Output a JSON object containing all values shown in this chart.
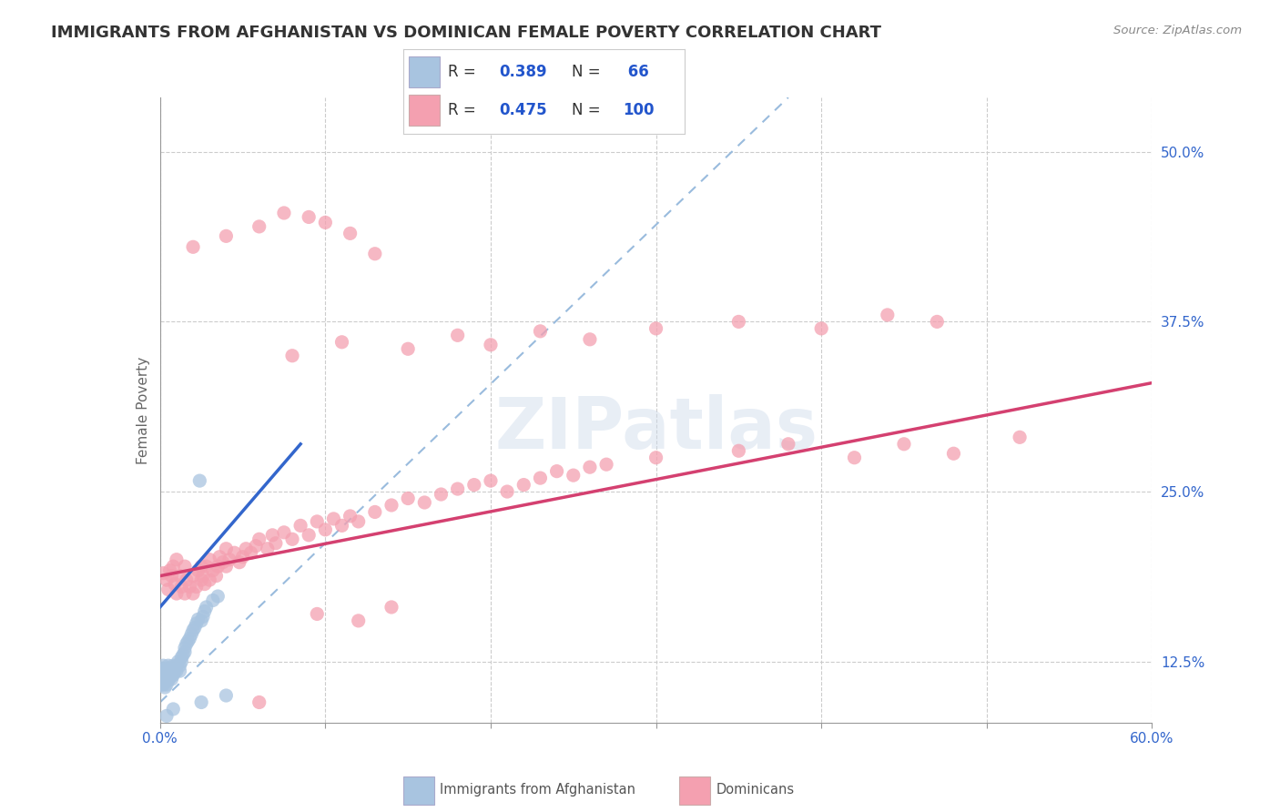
{
  "title": "IMMIGRANTS FROM AFGHANISTAN VS DOMINICAN FEMALE POVERTY CORRELATION CHART",
  "source": "Source: ZipAtlas.com",
  "ylabel": "Female Poverty",
  "xlim": [
    0.0,
    0.6
  ],
  "ylim": [
    0.08,
    0.54
  ],
  "x_tick_positions": [
    0.0,
    0.1,
    0.2,
    0.3,
    0.4,
    0.5,
    0.6
  ],
  "ylabel_ticks": [
    0.125,
    0.25,
    0.375,
    0.5
  ],
  "ylabel_tick_labels": [
    "12.5%",
    "25.0%",
    "37.5%",
    "50.0%"
  ],
  "afghanistan_color": "#a8c4e0",
  "dominican_color": "#f4a0b0",
  "legend_R_color": "#2255cc",
  "afghanistan_R": "0.389",
  "afghanistan_N": "66",
  "dominican_R": "0.475",
  "dominican_N": "100",
  "watermark": "ZIPatlas",
  "afghanistan_scatter": [
    [
      0.001,
      0.115
    ],
    [
      0.001,
      0.112
    ],
    [
      0.001,
      0.108
    ],
    [
      0.001,
      0.12
    ],
    [
      0.001,
      0.118
    ],
    [
      0.001,
      0.113
    ],
    [
      0.002,
      0.116
    ],
    [
      0.002,
      0.11
    ],
    [
      0.002,
      0.119
    ],
    [
      0.002,
      0.114
    ],
    [
      0.002,
      0.108
    ],
    [
      0.002,
      0.122
    ],
    [
      0.003,
      0.115
    ],
    [
      0.003,
      0.112
    ],
    [
      0.003,
      0.118
    ],
    [
      0.003,
      0.11
    ],
    [
      0.003,
      0.106
    ],
    [
      0.004,
      0.116
    ],
    [
      0.004,
      0.113
    ],
    [
      0.004,
      0.12
    ],
    [
      0.004,
      0.108
    ],
    [
      0.005,
      0.118
    ],
    [
      0.005,
      0.114
    ],
    [
      0.005,
      0.111
    ],
    [
      0.005,
      0.122
    ],
    [
      0.006,
      0.116
    ],
    [
      0.006,
      0.12
    ],
    [
      0.006,
      0.113
    ],
    [
      0.007,
      0.118
    ],
    [
      0.007,
      0.115
    ],
    [
      0.007,
      0.112
    ],
    [
      0.007,
      0.12
    ],
    [
      0.008,
      0.118
    ],
    [
      0.008,
      0.122
    ],
    [
      0.008,
      0.115
    ],
    [
      0.009,
      0.118
    ],
    [
      0.009,
      0.12
    ],
    [
      0.01,
      0.122
    ],
    [
      0.01,
      0.118
    ],
    [
      0.011,
      0.125
    ],
    [
      0.012,
      0.118
    ],
    [
      0.012,
      0.122
    ],
    [
      0.013,
      0.125
    ],
    [
      0.013,
      0.128
    ],
    [
      0.014,
      0.13
    ],
    [
      0.015,
      0.132
    ],
    [
      0.015,
      0.135
    ],
    [
      0.016,
      0.138
    ],
    [
      0.017,
      0.14
    ],
    [
      0.018,
      0.142
    ],
    [
      0.019,
      0.145
    ],
    [
      0.02,
      0.148
    ],
    [
      0.021,
      0.15
    ],
    [
      0.022,
      0.153
    ],
    [
      0.023,
      0.156
    ],
    [
      0.024,
      0.258
    ],
    [
      0.025,
      0.155
    ],
    [
      0.026,
      0.158
    ],
    [
      0.027,
      0.162
    ],
    [
      0.028,
      0.165
    ],
    [
      0.032,
      0.17
    ],
    [
      0.035,
      0.173
    ],
    [
      0.004,
      0.085
    ],
    [
      0.008,
      0.09
    ],
    [
      0.025,
      0.095
    ],
    [
      0.04,
      0.1
    ]
  ],
  "dominican_scatter": [
    [
      0.002,
      0.19
    ],
    [
      0.004,
      0.185
    ],
    [
      0.005,
      0.178
    ],
    [
      0.006,
      0.192
    ],
    [
      0.007,
      0.188
    ],
    [
      0.008,
      0.195
    ],
    [
      0.009,
      0.182
    ],
    [
      0.01,
      0.175
    ],
    [
      0.01,
      0.2
    ],
    [
      0.012,
      0.188
    ],
    [
      0.013,
      0.18
    ],
    [
      0.015,
      0.175
    ],
    [
      0.015,
      0.195
    ],
    [
      0.016,
      0.185
    ],
    [
      0.018,
      0.18
    ],
    [
      0.02,
      0.175
    ],
    [
      0.02,
      0.188
    ],
    [
      0.022,
      0.18
    ],
    [
      0.023,
      0.192
    ],
    [
      0.025,
      0.185
    ],
    [
      0.025,
      0.195
    ],
    [
      0.026,
      0.188
    ],
    [
      0.027,
      0.182
    ],
    [
      0.028,
      0.195
    ],
    [
      0.03,
      0.185
    ],
    [
      0.03,
      0.2
    ],
    [
      0.032,
      0.192
    ],
    [
      0.034,
      0.188
    ],
    [
      0.035,
      0.195
    ],
    [
      0.036,
      0.202
    ],
    [
      0.038,
      0.198
    ],
    [
      0.04,
      0.195
    ],
    [
      0.04,
      0.208
    ],
    [
      0.042,
      0.2
    ],
    [
      0.045,
      0.205
    ],
    [
      0.048,
      0.198
    ],
    [
      0.05,
      0.202
    ],
    [
      0.052,
      0.208
    ],
    [
      0.055,
      0.205
    ],
    [
      0.058,
      0.21
    ],
    [
      0.06,
      0.215
    ],
    [
      0.065,
      0.208
    ],
    [
      0.068,
      0.218
    ],
    [
      0.07,
      0.212
    ],
    [
      0.075,
      0.22
    ],
    [
      0.08,
      0.215
    ],
    [
      0.085,
      0.225
    ],
    [
      0.09,
      0.218
    ],
    [
      0.095,
      0.228
    ],
    [
      0.1,
      0.222
    ],
    [
      0.105,
      0.23
    ],
    [
      0.11,
      0.225
    ],
    [
      0.115,
      0.232
    ],
    [
      0.12,
      0.228
    ],
    [
      0.13,
      0.235
    ],
    [
      0.14,
      0.24
    ],
    [
      0.15,
      0.245
    ],
    [
      0.16,
      0.242
    ],
    [
      0.17,
      0.248
    ],
    [
      0.18,
      0.252
    ],
    [
      0.19,
      0.255
    ],
    [
      0.2,
      0.258
    ],
    [
      0.21,
      0.25
    ],
    [
      0.22,
      0.255
    ],
    [
      0.23,
      0.26
    ],
    [
      0.24,
      0.265
    ],
    [
      0.25,
      0.262
    ],
    [
      0.26,
      0.268
    ],
    [
      0.27,
      0.27
    ],
    [
      0.3,
      0.275
    ],
    [
      0.35,
      0.28
    ],
    [
      0.38,
      0.285
    ],
    [
      0.42,
      0.275
    ],
    [
      0.45,
      0.285
    ],
    [
      0.48,
      0.278
    ],
    [
      0.52,
      0.29
    ],
    [
      0.08,
      0.35
    ],
    [
      0.11,
      0.36
    ],
    [
      0.15,
      0.355
    ],
    [
      0.18,
      0.365
    ],
    [
      0.2,
      0.358
    ],
    [
      0.23,
      0.368
    ],
    [
      0.26,
      0.362
    ],
    [
      0.3,
      0.37
    ],
    [
      0.35,
      0.375
    ],
    [
      0.4,
      0.37
    ],
    [
      0.44,
      0.38
    ],
    [
      0.47,
      0.375
    ],
    [
      0.02,
      0.43
    ],
    [
      0.04,
      0.438
    ],
    [
      0.06,
      0.445
    ],
    [
      0.075,
      0.455
    ],
    [
      0.09,
      0.452
    ],
    [
      0.1,
      0.448
    ],
    [
      0.115,
      0.44
    ],
    [
      0.13,
      0.425
    ],
    [
      0.095,
      0.16
    ],
    [
      0.12,
      0.155
    ],
    [
      0.14,
      0.165
    ],
    [
      0.06,
      0.095
    ]
  ],
  "afghanistan_trend_x": [
    0.0,
    0.085
  ],
  "afghanistan_trend_y": [
    0.165,
    0.285
  ],
  "dominican_trend_x": [
    0.0,
    0.6
  ],
  "dominican_trend_y": [
    0.188,
    0.33
  ],
  "dash_line_x": [
    0.0,
    0.38
  ],
  "dash_line_y": [
    0.095,
    0.54
  ]
}
